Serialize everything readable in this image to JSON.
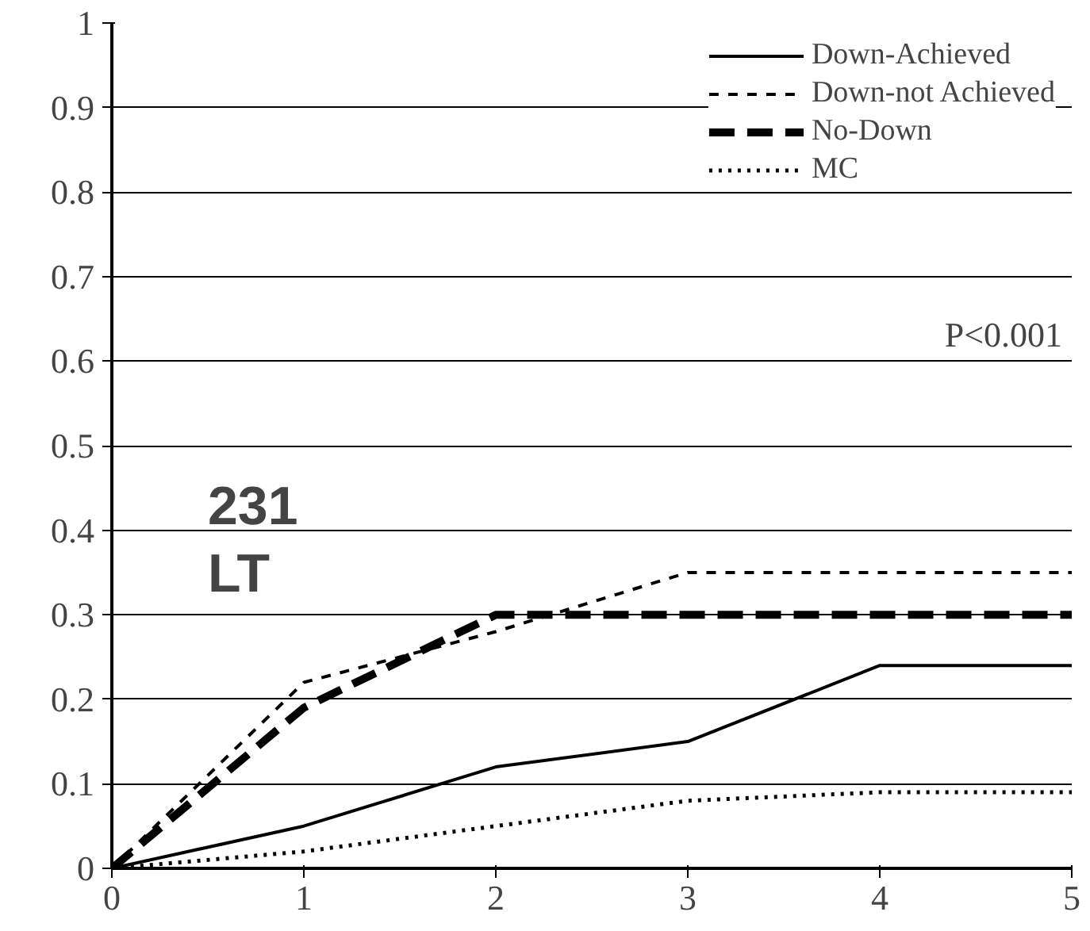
{
  "chart_data": {
    "type": "line",
    "x": [
      0,
      1,
      2,
      3,
      4,
      5
    ],
    "series": [
      {
        "name": "Down-Achieved",
        "color": "#000000",
        "line_style": "solid",
        "values": [
          0,
          0.05,
          0.12,
          0.15,
          0.24,
          0.24
        ]
      },
      {
        "name": "Down-not Achieved",
        "color": "#000000",
        "line_style": "dashed",
        "values": [
          0,
          0.22,
          0.28,
          0.35,
          0.35,
          0.35
        ]
      },
      {
        "name": "No-Down",
        "color": "#000000",
        "line_style": "dashed",
        "values": [
          0,
          0.19,
          0.3,
          0.3,
          0.3,
          0.3
        ]
      },
      {
        "name": "MC",
        "color": "#000000",
        "line_style": "dotted",
        "values": [
          0,
          0.02,
          0.05,
          0.08,
          0.09,
          0.09
        ]
      }
    ],
    "xlim": [
      0,
      5
    ],
    "ylim": [
      0,
      1
    ],
    "xticks": [
      0,
      1,
      2,
      3,
      4,
      5
    ],
    "yticks": [
      0,
      0.1,
      0.2,
      0.3,
      0.4,
      0.5,
      0.6,
      0.7,
      0.8,
      0.9,
      1
    ],
    "grid": "y",
    "legend": "top right",
    "marker": "none",
    "annotations": [
      "P<0.001",
      "231",
      "LT"
    ]
  }
}
